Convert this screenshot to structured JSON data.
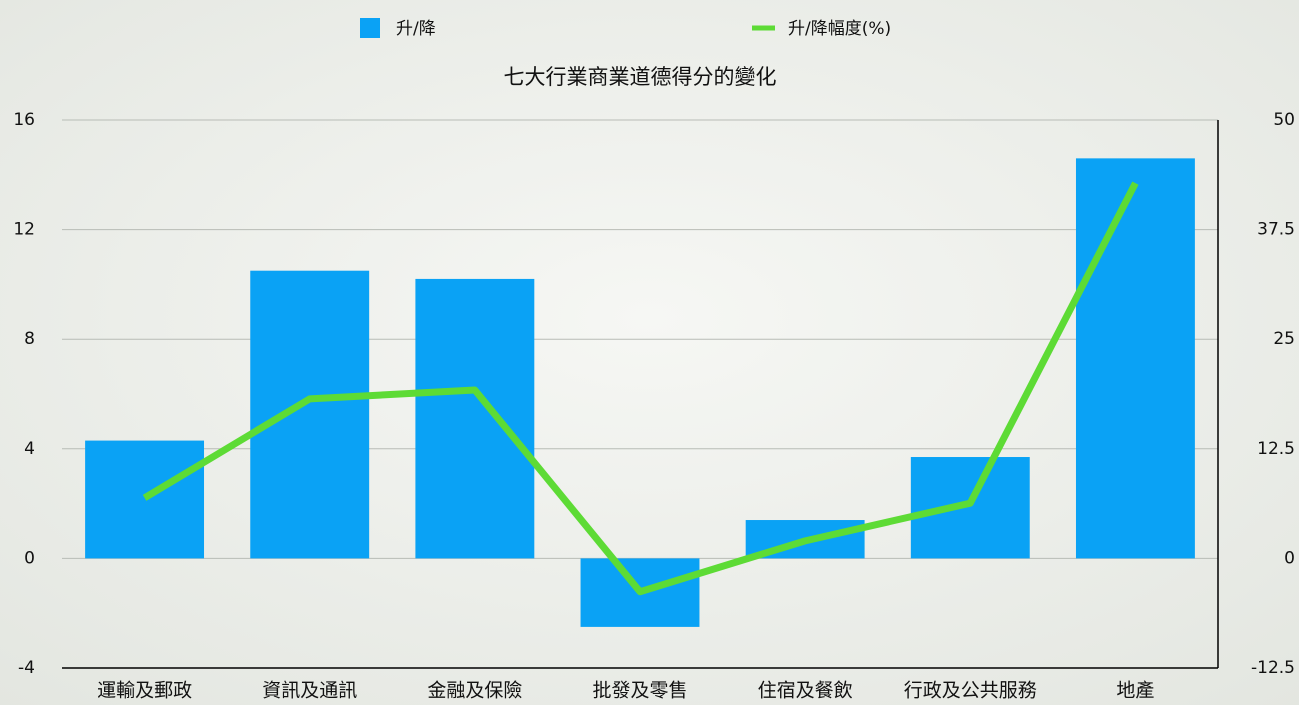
{
  "chart_data": {
    "type": "bar_line",
    "title": "七大行業商業道德得分的變化",
    "categories": [
      "運輸及郵政",
      "資訊及通訊",
      "金融及保險",
      "批發及零售",
      "住宿及餐飲",
      "行政及公共服務",
      "地產"
    ],
    "series": [
      {
        "name": "升/降",
        "color": "#0aa2f5",
        "type": "bar",
        "values": [
          4.3,
          10.5,
          10.2,
          -2.5,
          1.4,
          3.7,
          14.6
        ]
      },
      {
        "name": "升/降幅度(%)",
        "color": "#5ddb35",
        "type": "line",
        "axis": "y2",
        "values": [
          6.9,
          18.2,
          19.2,
          -3.8,
          2.0,
          6.3,
          42.8
        ]
      }
    ],
    "ylim": [
      -4,
      16
    ],
    "yticks": [
      -4,
      0,
      4,
      8,
      12,
      16
    ],
    "y2lim": [
      -12.5,
      50
    ],
    "y2ticks": [
      -12.5,
      0,
      12.5,
      25,
      37.5,
      50
    ],
    "grid": true,
    "legend": "top"
  }
}
